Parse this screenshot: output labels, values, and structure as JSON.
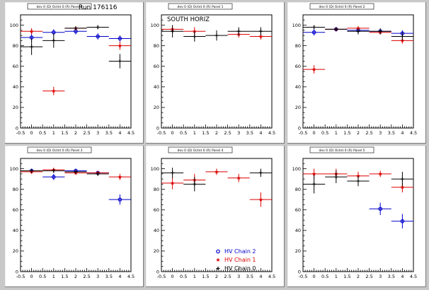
{
  "run_label": "Run 176116",
  "colors": {
    "chain2": "#0000cc",
    "chain1": "#dd0000",
    "chain0": "#000000",
    "background": "#c8c8c8"
  },
  "legend": [
    {
      "label": "HV Chain 2",
      "color": "#0000cc",
      "marker": "open-circle"
    },
    {
      "label": "HV Chain 1",
      "color": "#dd0000",
      "marker": "star"
    },
    {
      "label": "HV Chain 0",
      "color": "#000000",
      "marker": "plus"
    }
  ],
  "chart_data": [
    {
      "type": "scatter",
      "title": "dev 0 (D) Octnt 0 (R) Panel 0",
      "annotation": "",
      "xlim": [
        -0.5,
        4.5
      ],
      "ylim": [
        0,
        110
      ],
      "x_ticks": [
        "-0.5",
        "0",
        "0.5",
        "1",
        "1.5",
        "2",
        "2.5",
        "3",
        "3.5",
        "4",
        "4.5"
      ],
      "y_ticks": [
        "0",
        "20",
        "40",
        "60",
        "80",
        "100"
      ],
      "series": [
        {
          "name": "HV Chain 2",
          "points": [
            {
              "x": 0,
              "y": 88,
              "err": 4
            },
            {
              "x": 1,
              "y": 93,
              "err": 3
            },
            {
              "x": 2,
              "y": 94,
              "err": 3
            },
            {
              "x": 3,
              "y": 89,
              "err": 3
            },
            {
              "x": 4,
              "y": 87,
              "err": 3
            }
          ]
        },
        {
          "name": "HV Chain 1",
          "points": [
            {
              "x": 0,
              "y": 94,
              "err": 3
            },
            {
              "x": 1,
              "y": 36,
              "err": 4
            },
            {
              "x": 2,
              "y": 97,
              "err": 2
            },
            {
              "x": 4,
              "y": 80,
              "err": 4
            }
          ]
        },
        {
          "name": "HV Chain 0",
          "points": [
            {
              "x": 0,
              "y": 79,
              "err": 8
            },
            {
              "x": 1,
              "y": 85,
              "err": 7
            },
            {
              "x": 2,
              "y": 97,
              "err": 2
            },
            {
              "x": 3,
              "y": 98,
              "err": 2
            },
            {
              "x": 4,
              "y": 65,
              "err": 7
            }
          ]
        }
      ]
    },
    {
      "type": "scatter",
      "title": "dev 0 (D) Octnt 0 (R) Panel 1",
      "annotation": "SOUTH HORIZ",
      "xlim": [
        -0.5,
        4.5
      ],
      "ylim": [
        0,
        110
      ],
      "x_ticks": [
        "-0.5",
        "0",
        "0.5",
        "1",
        "1.5",
        "2",
        "2.5",
        "3",
        "3.5",
        "4",
        "4.5"
      ],
      "y_ticks": [
        "0",
        "20",
        "40",
        "60",
        "80",
        "100"
      ],
      "series": [
        {
          "name": "HV Chain 2",
          "points": []
        },
        {
          "name": "HV Chain 1",
          "points": [
            {
              "x": 0,
              "y": 96,
              "err": 4
            },
            {
              "x": 1,
              "y": 94,
              "err": 4
            },
            {
              "x": 3,
              "y": 91,
              "err": 3
            },
            {
              "x": 4,
              "y": 89,
              "err": 3
            }
          ]
        },
        {
          "name": "HV Chain 0",
          "points": [
            {
              "x": 0,
              "y": 94,
              "err": 6
            },
            {
              "x": 1,
              "y": 89,
              "err": 5
            },
            {
              "x": 2,
              "y": 90,
              "err": 5
            },
            {
              "x": 3,
              "y": 94,
              "err": 4
            },
            {
              "x": 4,
              "y": 94,
              "err": 4
            }
          ]
        }
      ]
    },
    {
      "type": "scatter",
      "title": "dev 0 (D) Octnt 0 (R) Panel 2",
      "annotation": "",
      "xlim": [
        -0.5,
        4.5
      ],
      "ylim": [
        0,
        110
      ],
      "x_ticks": [
        "-0.5",
        "0",
        "0.5",
        "1",
        "1.5",
        "2",
        "2.5",
        "3",
        "3.5",
        "4",
        "4.5"
      ],
      "y_ticks": [
        "0",
        "20",
        "40",
        "60",
        "80",
        "100"
      ],
      "series": [
        {
          "name": "HV Chain 2",
          "points": [
            {
              "x": 0,
              "y": 93,
              "err": 3
            },
            {
              "x": 1,
              "y": 96,
              "err": 2
            },
            {
              "x": 2,
              "y": 95,
              "err": 2
            },
            {
              "x": 3,
              "y": 94,
              "err": 2
            },
            {
              "x": 4,
              "y": 92,
              "err": 3
            }
          ]
        },
        {
          "name": "HV Chain 1",
          "points": [
            {
              "x": 0,
              "y": 57,
              "err": 4
            },
            {
              "x": 1,
              "y": 96,
              "err": 2
            },
            {
              "x": 2,
              "y": 97,
              "err": 2
            },
            {
              "x": 3,
              "y": 93,
              "err": 2
            },
            {
              "x": 4,
              "y": 85,
              "err": 3
            }
          ]
        },
        {
          "name": "HV Chain 0",
          "points": [
            {
              "x": 0,
              "y": 98,
              "err": 2
            },
            {
              "x": 1,
              "y": 96,
              "err": 2
            },
            {
              "x": 2,
              "y": 94,
              "err": 3
            },
            {
              "x": 3,
              "y": 94,
              "err": 3
            },
            {
              "x": 4,
              "y": 89,
              "err": 4
            }
          ]
        }
      ]
    },
    {
      "type": "scatter",
      "title": "dev 0 (D) Octnt 0 (R) Panel 3",
      "annotation": "",
      "xlim": [
        -0.5,
        4.5
      ],
      "ylim": [
        0,
        110
      ],
      "x_ticks": [
        "-0.5",
        "0",
        "0.5",
        "1",
        "1.5",
        "2",
        "2.5",
        "3",
        "3.5",
        "4",
        "4.5"
      ],
      "y_ticks": [
        "0",
        "20",
        "40",
        "60",
        "80",
        "100"
      ],
      "series": [
        {
          "name": "HV Chain 2",
          "points": [
            {
              "x": 0,
              "y": 98,
              "err": 2
            },
            {
              "x": 1,
              "y": 92,
              "err": 3
            },
            {
              "x": 2,
              "y": 98,
              "err": 2
            },
            {
              "x": 3,
              "y": 96,
              "err": 2
            },
            {
              "x": 4,
              "y": 70,
              "err": 5
            }
          ]
        },
        {
          "name": "HV Chain 1",
          "points": [
            {
              "x": 0,
              "y": 97,
              "err": 2
            },
            {
              "x": 1,
              "y": 99,
              "err": 2
            },
            {
              "x": 2,
              "y": 96,
              "err": 2
            },
            {
              "x": 3,
              "y": 96,
              "err": 2
            },
            {
              "x": 4,
              "y": 92,
              "err": 3
            }
          ]
        },
        {
          "name": "HV Chain 0",
          "points": [
            {
              "x": 0,
              "y": 98,
              "err": 2
            },
            {
              "x": 1,
              "y": 98,
              "err": 2
            },
            {
              "x": 2,
              "y": 97,
              "err": 2
            },
            {
              "x": 3,
              "y": 95,
              "err": 2
            }
          ]
        }
      ]
    },
    {
      "type": "scatter",
      "title": "dev 0 (D) Octnt 0 (R) Panel 4",
      "annotation": "",
      "xlim": [
        -0.5,
        4.5
      ],
      "ylim": [
        0,
        110
      ],
      "x_ticks": [
        "-0.5",
        "0",
        "0.5",
        "1",
        "1.5",
        "2",
        "2.5",
        "3",
        "3.5",
        "4",
        "4.5"
      ],
      "y_ticks": [
        "0",
        "20",
        "40",
        "60",
        "80",
        "100"
      ],
      "show_legend": true,
      "series": [
        {
          "name": "HV Chain 2",
          "points": []
        },
        {
          "name": "HV Chain 1",
          "points": [
            {
              "x": 0,
              "y": 86,
              "err": 6
            },
            {
              "x": 1,
              "y": 89,
              "err": 6
            },
            {
              "x": 2,
              "y": 97,
              "err": 3
            },
            {
              "x": 3,
              "y": 91,
              "err": 4
            },
            {
              "x": 4,
              "y": 70,
              "err": 7
            }
          ]
        },
        {
          "name": "HV Chain 0",
          "points": [
            {
              "x": 0,
              "y": 96,
              "err": 5
            },
            {
              "x": 1,
              "y": 85,
              "err": 7
            },
            {
              "x": 4,
              "y": 96,
              "err": 4
            }
          ]
        }
      ]
    },
    {
      "type": "scatter",
      "title": "dev 0 (D) Octnt 0 (R) Panel 5",
      "annotation": "",
      "xlim": [
        -0.5,
        4.5
      ],
      "ylim": [
        0,
        110
      ],
      "x_ticks": [
        "-0.5",
        "0",
        "0.5",
        "1",
        "1.5",
        "2",
        "2.5",
        "3",
        "3.5",
        "4",
        "4.5"
      ],
      "y_ticks": [
        "0",
        "20",
        "40",
        "60",
        "80",
        "100"
      ],
      "series": [
        {
          "name": "HV Chain 2",
          "points": [
            {
              "x": 3,
              "y": 61,
              "err": 6
            },
            {
              "x": 4,
              "y": 49,
              "err": 7
            }
          ]
        },
        {
          "name": "HV Chain 1",
          "points": [
            {
              "x": 0,
              "y": 95,
              "err": 5
            },
            {
              "x": 1,
              "y": 95,
              "err": 5
            },
            {
              "x": 2,
              "y": 93,
              "err": 4
            },
            {
              "x": 3,
              "y": 95,
              "err": 3
            },
            {
              "x": 4,
              "y": 82,
              "err": 5
            }
          ]
        },
        {
          "name": "HV Chain 0",
          "points": [
            {
              "x": 0,
              "y": 85,
              "err": 9
            },
            {
              "x": 1,
              "y": 92,
              "err": 6
            },
            {
              "x": 2,
              "y": 88,
              "err": 5
            },
            {
              "x": 4,
              "y": 90,
              "err": 7
            }
          ]
        }
      ]
    }
  ]
}
